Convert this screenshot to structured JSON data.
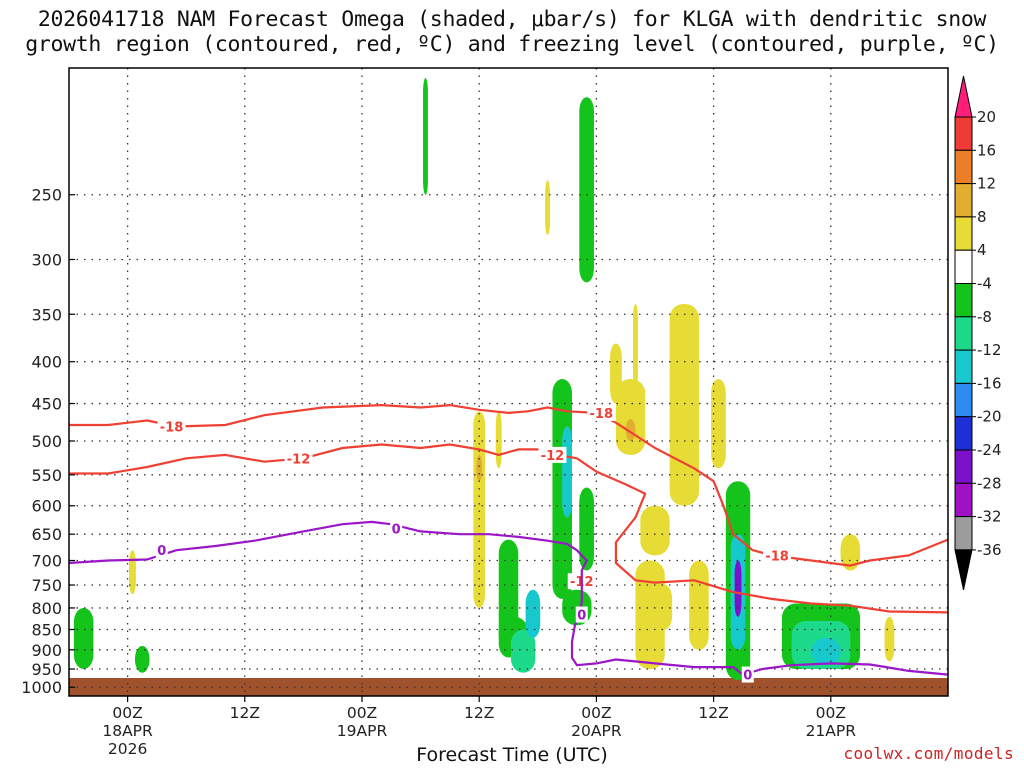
{
  "title": {
    "line1": "2026041718 NAM Forecast Omega (shaded, μbar/s) for KLGA with dendritic snow",
    "line2": "growth region (contoured, red, ºC) and freezing level (contoured, purple, ºC)"
  },
  "credit": "coolwx.com/models",
  "chart_data": {
    "type": "heatmap",
    "xlabel": "Forecast Time (UTC)",
    "ylabel": "",
    "x_range_hours": [
      -6,
      84
    ],
    "y_range_mb": [
      1025,
      175
    ],
    "y_scale": "log-pressure",
    "grid": true,
    "y_ticks": [
      "250",
      "300",
      "350",
      "400",
      "450",
      "500",
      "550",
      "600",
      "650",
      "700",
      "750",
      "800",
      "850",
      "900",
      "950",
      "1000"
    ],
    "x_ticks": [
      {
        "hour": 0,
        "label": "00Z",
        "date": "18APR",
        "year": "2026"
      },
      {
        "hour": 12,
        "label": "12Z",
        "date": "",
        "year": ""
      },
      {
        "hour": 24,
        "label": "00Z",
        "date": "19APR",
        "year": ""
      },
      {
        "hour": 36,
        "label": "12Z",
        "date": "",
        "year": ""
      },
      {
        "hour": 48,
        "label": "00Z",
        "date": "20APR",
        "year": ""
      },
      {
        "hour": 60,
        "label": "12Z",
        "date": "",
        "year": ""
      },
      {
        "hour": 72,
        "label": "00Z",
        "date": "21APR",
        "year": ""
      }
    ],
    "colorbar": {
      "labels": [
        "20",
        "16",
        "12",
        "8",
        "4",
        "-4",
        "-8",
        "-12",
        "-16",
        "-20",
        "-24",
        "-28",
        "-32",
        "-36"
      ],
      "colors": [
        "#ff1f7a",
        "#ef3b35",
        "#ec7f26",
        "#e3ad2f",
        "#e6dc35",
        "#ffffff",
        "#14c41a",
        "#1dd98a",
        "#17c9cc",
        "#2d8cf0",
        "#1f2fd8",
        "#7b12c9",
        "#a010c4",
        "#9c9c9c",
        "#000000"
      ]
    },
    "omega_cells": [
      {
        "t": -4.5,
        "p0": 800,
        "p1": 950,
        "dt": 2,
        "v": -6
      },
      {
        "t": 1.5,
        "p0": 890,
        "p1": 960,
        "dt": 1.5,
        "v": -6
      },
      {
        "t": 30.5,
        "p0": 180,
        "p1": 250,
        "dt": 0.5,
        "v": -6
      },
      {
        "t": 39,
        "p0": 660,
        "p1": 920,
        "dt": 2,
        "v": -6
      },
      {
        "t": 39.5,
        "p0": 820,
        "p1": 900,
        "dt": 3,
        "v": -6
      },
      {
        "t": 40.5,
        "p0": 850,
        "p1": 960,
        "dt": 2.5,
        "v": -8
      },
      {
        "t": 41.5,
        "p0": 760,
        "p1": 870,
        "dt": 1.5,
        "v": -12
      },
      {
        "t": 44.5,
        "p0": 420,
        "p1": 780,
        "dt": 2,
        "v": -6
      },
      {
        "t": 45,
        "p0": 480,
        "p1": 620,
        "dt": 1,
        "v": -12
      },
      {
        "t": 46,
        "p0": 760,
        "p1": 840,
        "dt": 3,
        "v": -6
      },
      {
        "t": 47,
        "p0": 570,
        "p1": 720,
        "dt": 1.5,
        "v": -6
      },
      {
        "t": 47,
        "p0": 190,
        "p1": 320,
        "dt": 1.5,
        "v": -6
      },
      {
        "t": 62.5,
        "p0": 560,
        "p1": 980,
        "dt": 2.5,
        "v": -6
      },
      {
        "t": 62.5,
        "p0": 650,
        "p1": 900,
        "dt": 1.5,
        "v": -12
      },
      {
        "t": 62.5,
        "p0": 700,
        "p1": 820,
        "dt": 0.7,
        "v": -24
      },
      {
        "t": 71,
        "p0": 790,
        "p1": 950,
        "dt": 8,
        "v": -6
      },
      {
        "t": 71,
        "p0": 830,
        "p1": 950,
        "dt": 6,
        "v": -8
      },
      {
        "t": 71.5,
        "p0": 870,
        "p1": 940,
        "dt": 3,
        "v": -12
      },
      {
        "t": 0.5,
        "p0": 680,
        "p1": 770,
        "dt": 0.7,
        "v": 4
      },
      {
        "t": 36,
        "p0": 460,
        "p1": 800,
        "dt": 1.2,
        "v": 4
      },
      {
        "t": 36,
        "p0": 520,
        "p1": 560,
        "dt": 0.6,
        "v": 8
      },
      {
        "t": 38,
        "p0": 460,
        "p1": 540,
        "dt": 0.6,
        "v": 4
      },
      {
        "t": 43,
        "p0": 240,
        "p1": 280,
        "dt": 0.5,
        "v": 4
      },
      {
        "t": 50,
        "p0": 380,
        "p1": 450,
        "dt": 1.2,
        "v": 4
      },
      {
        "t": 52,
        "p0": 340,
        "p1": 430,
        "dt": 0.5,
        "v": 4
      },
      {
        "t": 55,
        "p0": 750,
        "p1": 850,
        "dt": 1.5,
        "v": 4
      },
      {
        "t": 58.5,
        "p0": 700,
        "p1": 900,
        "dt": 2,
        "v": 4
      },
      {
        "t": 51.5,
        "p0": 420,
        "p1": 520,
        "dt": 3,
        "v": 4
      },
      {
        "t": 51.5,
        "p0": 470,
        "p1": 500,
        "dt": 1,
        "v": 8
      },
      {
        "t": 54,
        "p0": 600,
        "p1": 690,
        "dt": 3,
        "v": 4
      },
      {
        "t": 57,
        "p0": 340,
        "p1": 600,
        "dt": 3,
        "v": 4
      },
      {
        "t": 60.5,
        "p0": 420,
        "p1": 540,
        "dt": 1.5,
        "v": 4
      },
      {
        "t": 53.5,
        "p0": 700,
        "p1": 950,
        "dt": 3,
        "v": 4
      },
      {
        "t": 74,
        "p0": 650,
        "p1": 720,
        "dt": 2,
        "v": 4
      },
      {
        "t": 78,
        "p0": 820,
        "p1": 930,
        "dt": 1,
        "v": 4
      }
    ],
    "contours": [
      {
        "label": "-18",
        "color": "#ef4034",
        "label_at": [
          {
            "t": 4.5,
            "p": 480
          },
          {
            "t": 48.5,
            "p": 462
          },
          {
            "t": 66.5,
            "p": 690
          }
        ],
        "points": [
          [
            -6,
            478
          ],
          [
            -2,
            478
          ],
          [
            2,
            472
          ],
          [
            5,
            480
          ],
          [
            10,
            478
          ],
          [
            14,
            465
          ],
          [
            20,
            455
          ],
          [
            26,
            452
          ],
          [
            30,
            455
          ],
          [
            33,
            452
          ],
          [
            36,
            458
          ],
          [
            39,
            462
          ],
          [
            41,
            460
          ],
          [
            43,
            455
          ],
          [
            45,
            460
          ],
          [
            48,
            462
          ],
          [
            50,
            475
          ],
          [
            54,
            510
          ],
          [
            58,
            540
          ],
          [
            60,
            560
          ],
          [
            61,
            600
          ],
          [
            62,
            650
          ],
          [
            64,
            680
          ],
          [
            66,
            690
          ],
          [
            70,
            700
          ],
          [
            74,
            710
          ],
          [
            76,
            700
          ],
          [
            80,
            690
          ],
          [
            84,
            660
          ]
        ]
      },
      {
        "label": "-12",
        "color": "#ef4034",
        "label_at": [
          {
            "t": 17.5,
            "p": 525
          },
          {
            "t": 43.5,
            "p": 520
          },
          {
            "t": 46.5,
            "p": 742
          }
        ],
        "points": [
          [
            -6,
            548
          ],
          [
            -2,
            548
          ],
          [
            2,
            538
          ],
          [
            6,
            525
          ],
          [
            10,
            520
          ],
          [
            14,
            530
          ],
          [
            18,
            525
          ],
          [
            22,
            510
          ],
          [
            26,
            505
          ],
          [
            30,
            510
          ],
          [
            33,
            505
          ],
          [
            36,
            512
          ],
          [
            38,
            520
          ],
          [
            40,
            512
          ],
          [
            42,
            512
          ],
          [
            44,
            520
          ],
          [
            46,
            525
          ],
          [
            48,
            545
          ],
          [
            51,
            565
          ],
          [
            53,
            580
          ],
          [
            52,
            620
          ],
          [
            50,
            665
          ],
          [
            50,
            705
          ],
          [
            52,
            740
          ],
          [
            54,
            745
          ],
          [
            58,
            740
          ],
          [
            62,
            765
          ],
          [
            66,
            780
          ],
          [
            70,
            790
          ],
          [
            74,
            795
          ],
          [
            78,
            808
          ],
          [
            84,
            810
          ]
        ]
      },
      {
        "label": "0",
        "color": "#9a16c8",
        "label_at": [
          {
            "t": 3.5,
            "p": 680
          },
          {
            "t": 27.5,
            "p": 640
          },
          {
            "t": 46.5,
            "p": 815
          },
          {
            "t": 63.5,
            "p": 965
          }
        ],
        "points": [
          [
            -6,
            705
          ],
          [
            -2,
            700
          ],
          [
            2,
            698
          ],
          [
            5,
            680
          ],
          [
            9,
            672
          ],
          [
            13,
            662
          ],
          [
            18,
            645
          ],
          [
            22,
            632
          ],
          [
            25,
            628
          ],
          [
            27,
            632
          ],
          [
            30,
            645
          ],
          [
            34,
            650
          ],
          [
            37,
            650
          ],
          [
            40,
            655
          ],
          [
            43,
            662
          ],
          [
            45,
            668
          ],
          [
            46,
            680
          ],
          [
            47,
            700
          ],
          [
            46.5,
            720
          ],
          [
            46.5,
            785
          ],
          [
            46.3,
            815
          ],
          [
            45.8,
            840
          ],
          [
            45.5,
            880
          ],
          [
            45.5,
            920
          ],
          [
            46,
            940
          ],
          [
            48,
            935
          ],
          [
            50,
            925
          ],
          [
            54,
            935
          ],
          [
            58,
            945
          ],
          [
            62,
            945
          ],
          [
            63,
            965
          ],
          [
            65,
            950
          ],
          [
            68,
            940
          ],
          [
            72,
            935
          ],
          [
            76,
            938
          ],
          [
            80,
            955
          ],
          [
            84,
            965
          ]
        ]
      }
    ]
  }
}
